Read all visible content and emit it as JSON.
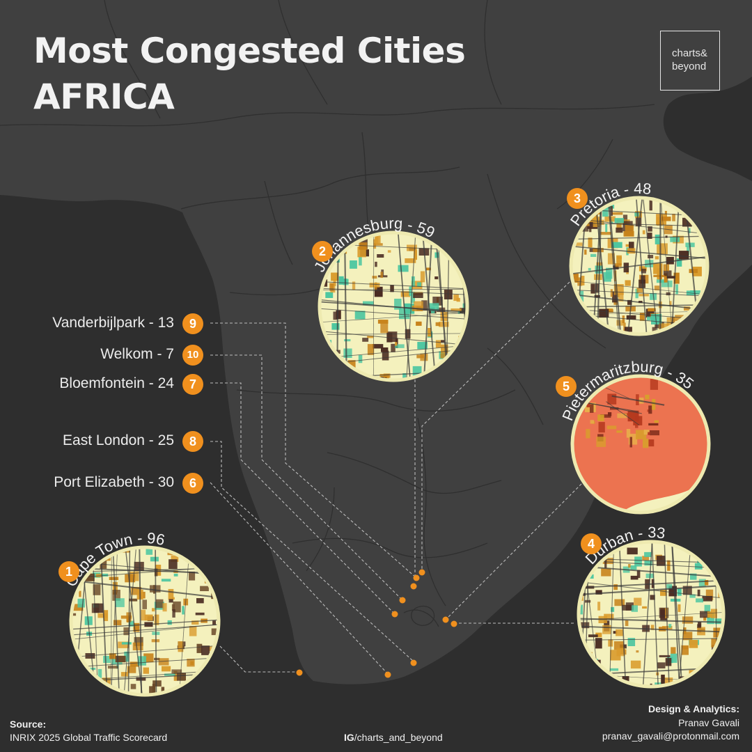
{
  "title": {
    "line1": "Most Congested Cities",
    "line2": "AFRICA"
  },
  "logo": {
    "line1": "charts&",
    "line2": "beyond"
  },
  "featured_cities": [
    {
      "rank": "1",
      "label": "Cape Town - 96",
      "name": "Cape Town",
      "value": 96
    },
    {
      "rank": "2",
      "label": "Johannesburg - 59",
      "name": "Johannesburg",
      "value": 59
    },
    {
      "rank": "3",
      "label": "Pretoria - 48",
      "name": "Pretoria",
      "value": 48
    },
    {
      "rank": "4",
      "label": "Durban - 33",
      "name": "Durban",
      "value": 33
    },
    {
      "rank": "5",
      "label": "Pietermaritzburg - 35",
      "name": "Pietermaritzburg",
      "value": 35
    }
  ],
  "side_cities": [
    {
      "rank": "9",
      "label": "Vanderbijlpark - 13",
      "name": "Vanderbijlpark",
      "value": 13
    },
    {
      "rank": "10",
      "label": "Welkom - 7",
      "name": "Welkom",
      "value": 7
    },
    {
      "rank": "7",
      "label": "Bloemfontein - 24",
      "name": "Bloemfontein",
      "value": 24
    },
    {
      "rank": "8",
      "label": "East London - 25",
      "name": "East London",
      "value": 25
    },
    {
      "rank": "6",
      "label": "Port Elizabeth - 30",
      "name": "Port Elizabeth",
      "value": 30
    }
  ],
  "source": {
    "heading": "Source:",
    "text": "INRIX 2025 Global Traffic Scorecard"
  },
  "social": {
    "prefix": "IG",
    "handle": "/charts_and_beyond"
  },
  "credits": {
    "heading": "Design & Analytics:",
    "name": "Pranav Gavali",
    "email": "pranav_gavali@protonmail.com"
  },
  "colors": {
    "background": "#2e2e2e",
    "land": "#404040",
    "accent": "#f0901e",
    "map_cream": "#f4f1bd",
    "map_green": "#4cc6a0",
    "map_ochre": "#c7821a",
    "map_dark": "#4a2c22",
    "pietermaritzburg_fill": "#ec7350"
  }
}
